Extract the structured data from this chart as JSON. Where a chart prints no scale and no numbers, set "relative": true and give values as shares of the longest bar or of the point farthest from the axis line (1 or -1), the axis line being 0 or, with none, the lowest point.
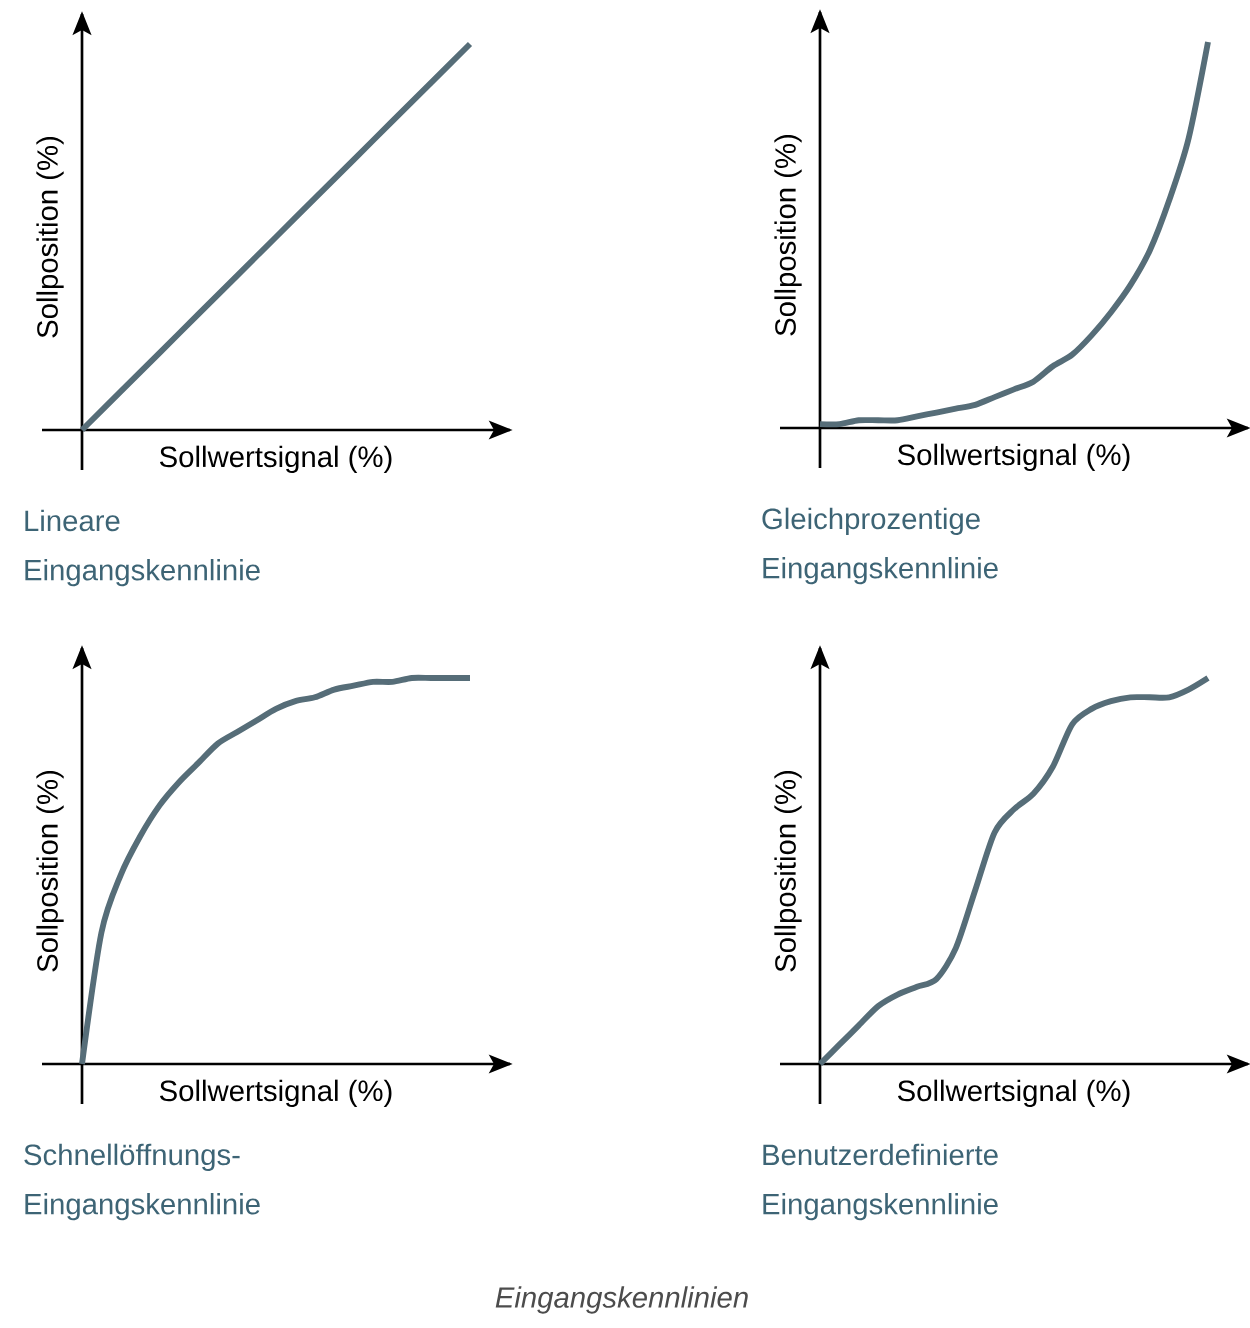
{
  "chart_data": [
    {
      "type": "line",
      "relative": true,
      "title": "Lineare Eingangskennlinie",
      "xlabel": "Sollwertsignal (%)",
      "ylabel": "Sollposition (%)",
      "color": "#566d78",
      "categories": [
        null,
        null,
        null,
        null,
        null,
        null,
        null,
        null,
        null,
        null,
        null
      ],
      "values": [
        0,
        0.1,
        0.2,
        0.3,
        0.4,
        0.5,
        0.6,
        0.7,
        0.8,
        0.9,
        1
      ]
    },
    {
      "type": "line",
      "relative": true,
      "title": "Gleichprozentige Eingangskennlinie",
      "xlabel": "Sollwertsignal (%)",
      "ylabel": "Sollposition (%)",
      "color": "#566d78",
      "categories": [
        null,
        null,
        null,
        null,
        null,
        null,
        null,
        null,
        null,
        null,
        null,
        null,
        null,
        null,
        null,
        null,
        null,
        null,
        null,
        null,
        null
      ],
      "values": [
        0.01,
        0.01,
        0.02,
        0.02,
        0.02,
        0.03,
        0.04,
        0.05,
        0.06,
        0.08,
        0.1,
        0.12,
        0.16,
        0.19,
        0.24,
        0.3,
        0.37,
        0.46,
        0.59,
        0.75,
        1
      ]
    },
    {
      "type": "line",
      "relative": true,
      "title": "Schnellöffnungs-Eingangskennlinie",
      "xlabel": "Sollwertsignal (%)",
      "ylabel": "Sollposition (%)",
      "color": "#566d78",
      "categories": [
        null,
        null,
        null,
        null,
        null,
        null,
        null,
        null,
        null,
        null,
        null,
        null,
        null,
        null,
        null,
        null,
        null,
        null,
        null,
        null,
        null
      ],
      "values": [
        0,
        0.34,
        0.49,
        0.59,
        0.67,
        0.73,
        0.78,
        0.83,
        0.86,
        0.89,
        0.92,
        0.94,
        0.95,
        0.97,
        0.98,
        0.99,
        0.99,
        1,
        1,
        1,
        1
      ]
    },
    {
      "type": "line",
      "relative": true,
      "title": "Benutzerdefinierte Eingangskennlinie",
      "xlabel": "Sollwertsignal (%)",
      "ylabel": "Sollposition (%)",
      "color": "#566d78",
      "categories": [
        null,
        null,
        null,
        null,
        null,
        null,
        null,
        null,
        null,
        null,
        null,
        null,
        null,
        null,
        null,
        null,
        null,
        null,
        null,
        null,
        null
      ],
      "values": [
        0,
        0.05,
        0.1,
        0.15,
        0.18,
        0.2,
        0.22,
        0.3,
        0.45,
        0.6,
        0.66,
        0.7,
        0.77,
        0.88,
        0.92,
        0.94,
        0.95,
        0.95,
        0.95,
        0.97,
        1
      ],
      "annotations": [
        "Eingangskennlinien"
      ]
    }
  ]
}
